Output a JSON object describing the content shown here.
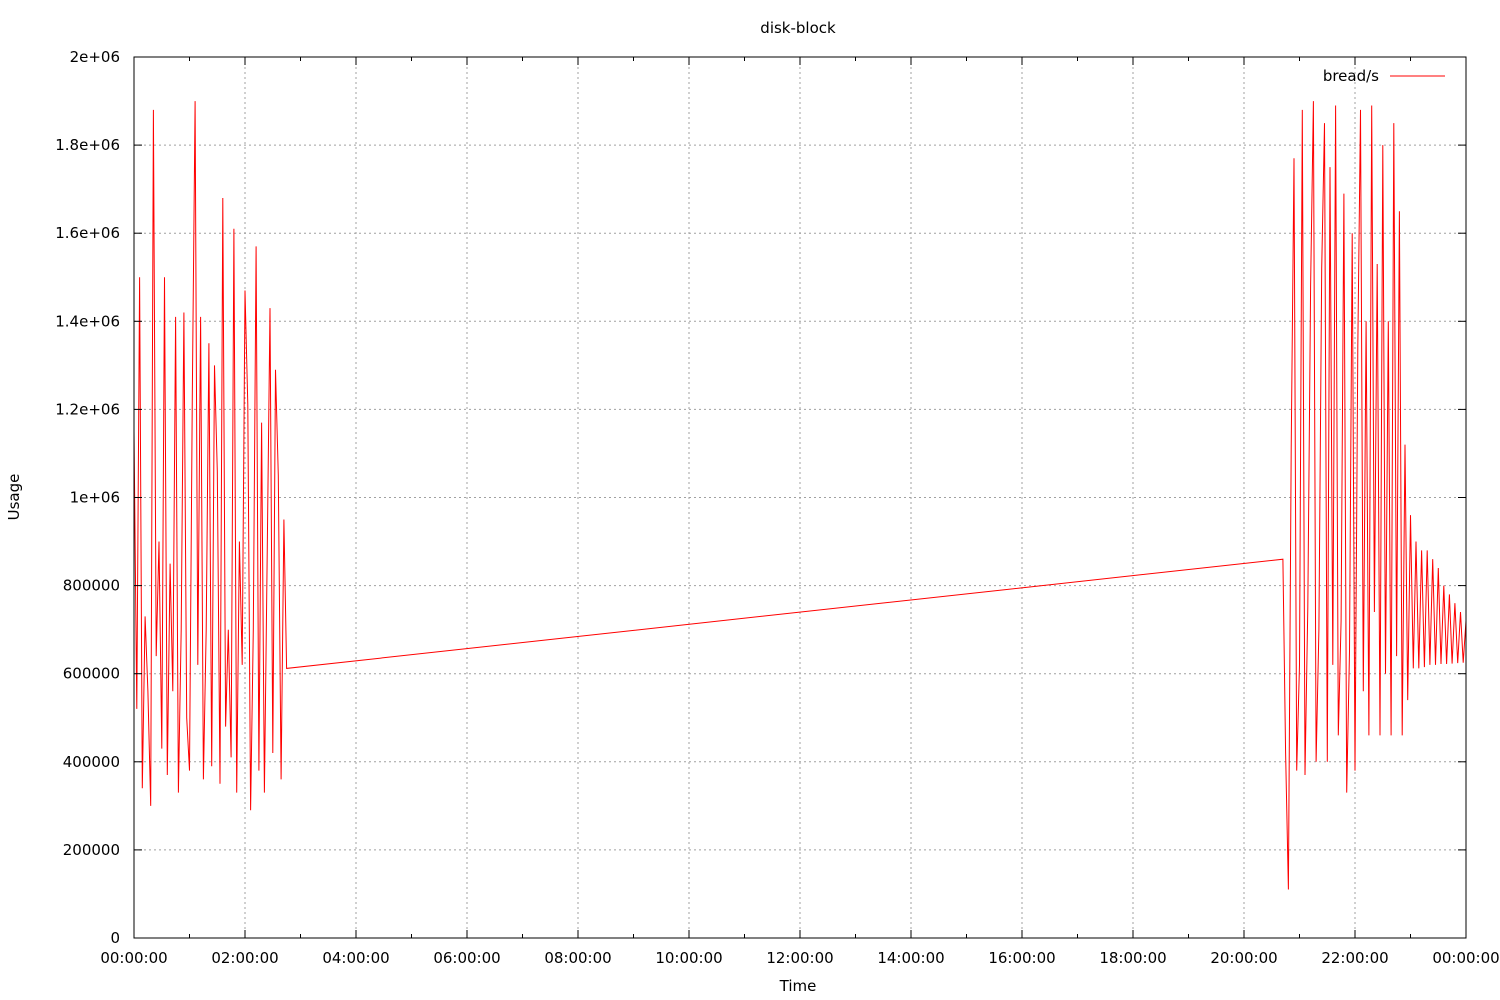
{
  "chart_data": {
    "type": "line",
    "title": "disk-block",
    "xlabel": "Time",
    "ylabel": "Usage",
    "xlim": [
      "00:00:00",
      "24:00:00"
    ],
    "ylim": [
      0,
      2000000
    ],
    "x_tick_labels": [
      "00:00:00",
      "02:00:00",
      "04:00:00",
      "06:00:00",
      "08:00:00",
      "10:00:00",
      "12:00:00",
      "14:00:00",
      "16:00:00",
      "18:00:00",
      "20:00:00",
      "22:00:00",
      "00:00:00"
    ],
    "y_tick_labels": [
      "0",
      "200000",
      "400000",
      "600000",
      "800000",
      "1e+06",
      "1.2e+06",
      "1.4e+06",
      "1.6e+06",
      "1.8e+06",
      "2e+06"
    ],
    "y_tick_values": [
      0,
      200000,
      400000,
      600000,
      800000,
      1000000,
      1200000,
      1400000,
      1600000,
      1800000,
      2000000
    ],
    "grid": true,
    "legend_position": "top-right",
    "series_color": "#ff0000",
    "series": [
      {
        "name": "bread/s",
        "x": [
          "00:00:00",
          "00:03:00",
          "00:06:00",
          "00:09:00",
          "00:12:00",
          "00:15:00",
          "00:18:00",
          "00:21:00",
          "00:24:00",
          "00:27:00",
          "00:30:00",
          "00:33:00",
          "00:36:00",
          "00:39:00",
          "00:42:00",
          "00:45:00",
          "00:48:00",
          "00:51:00",
          "00:54:00",
          "00:57:00",
          "01:00:00",
          "01:03:00",
          "01:06:00",
          "01:09:00",
          "01:12:00",
          "01:15:00",
          "01:18:00",
          "01:21:00",
          "01:24:00",
          "01:27:00",
          "01:30:00",
          "01:33:00",
          "01:36:00",
          "01:39:00",
          "01:42:00",
          "01:45:00",
          "01:48:00",
          "01:51:00",
          "01:54:00",
          "01:57:00",
          "02:00:00",
          "02:03:00",
          "02:06:00",
          "02:09:00",
          "02:12:00",
          "02:15:00",
          "02:18:00",
          "02:21:00",
          "02:24:00",
          "02:27:00",
          "02:30:00",
          "02:33:00",
          "02:36:00",
          "02:39:00",
          "02:42:00",
          "02:45:00",
          "20:42:00",
          "20:45:00",
          "20:48:00",
          "20:51:00",
          "20:54:00",
          "20:57:00",
          "21:00:00",
          "21:03:00",
          "21:06:00",
          "21:09:00",
          "21:12:00",
          "21:15:00",
          "21:18:00",
          "21:21:00",
          "21:24:00",
          "21:27:00",
          "21:30:00",
          "21:33:00",
          "21:36:00",
          "21:39:00",
          "21:42:00",
          "21:45:00",
          "21:48:00",
          "21:51:00",
          "21:54:00",
          "21:57:00",
          "22:00:00",
          "22:03:00",
          "22:06:00",
          "22:09:00",
          "22:12:00",
          "22:15:00",
          "22:18:00",
          "22:21:00",
          "22:24:00",
          "22:27:00",
          "22:30:00",
          "22:33:00",
          "22:36:00",
          "22:39:00",
          "22:42:00",
          "22:45:00",
          "22:48:00",
          "22:51:00",
          "22:54:00",
          "22:57:00",
          "23:00:00",
          "23:03:00",
          "23:06:00",
          "23:09:00",
          "23:12:00",
          "23:15:00",
          "23:18:00",
          "23:21:00",
          "23:24:00",
          "23:27:00",
          "23:30:00",
          "23:33:00",
          "23:36:00",
          "23:39:00",
          "23:42:00",
          "23:45:00",
          "23:48:00",
          "23:51:00",
          "23:54:00",
          "23:57:00",
          "24:00:00"
        ],
        "values": [
          1150000,
          520000,
          1500000,
          340000,
          730000,
          560000,
          300000,
          1880000,
          640000,
          900000,
          430000,
          1500000,
          370000,
          850000,
          560000,
          1410000,
          330000,
          700000,
          1420000,
          500000,
          380000,
          1230000,
          1900000,
          620000,
          1410000,
          360000,
          700000,
          1350000,
          390000,
          1300000,
          1060000,
          350000,
          1680000,
          480000,
          700000,
          410000,
          1610000,
          330000,
          900000,
          620000,
          1470000,
          1210000,
          290000,
          700000,
          1570000,
          380000,
          1170000,
          330000,
          870000,
          1430000,
          420000,
          1290000,
          1050000,
          360000,
          950000,
          612000,
          860000,
          420000,
          110000,
          1110000,
          1770000,
          380000,
          620000,
          1880000,
          370000,
          750000,
          1480000,
          1900000,
          400000,
          700000,
          1520000,
          1850000,
          400000,
          1750000,
          620000,
          1890000,
          460000,
          720000,
          1690000,
          330000,
          650000,
          1600000,
          380000,
          1340000,
          1880000,
          560000,
          1400000,
          460000,
          1890000,
          740000,
          1530000,
          460000,
          1800000,
          600000,
          1400000,
          460000,
          1850000,
          640000,
          1650000,
          460000,
          1120000,
          540000,
          960000,
          612000,
          900000,
          612000,
          880000,
          615000,
          880000,
          620000,
          860000,
          620000,
          840000,
          622000,
          800000,
          622000,
          780000,
          623000,
          760000,
          624000,
          740000,
          625000,
          720000
        ]
      }
    ]
  }
}
